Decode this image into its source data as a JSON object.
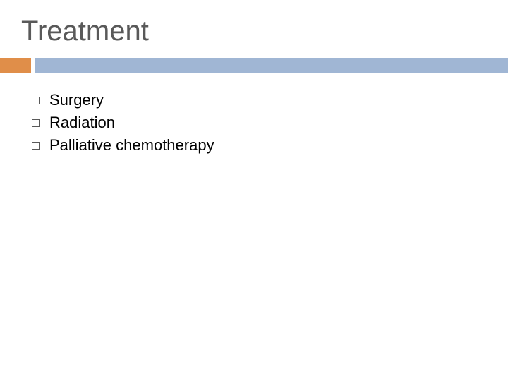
{
  "slide": {
    "title": "Treatment",
    "title_color": "#595959",
    "title_fontsize": 40,
    "separator": {
      "orange_color": "#e08e49",
      "orange_width": 44,
      "gap_width": 6,
      "blue_color": "#a0b6d4",
      "height": 22
    },
    "bullets": [
      {
        "text": "Surgery"
      },
      {
        "text": "Radiation"
      },
      {
        "text": "Palliative chemotherapy"
      }
    ],
    "bullet_fontsize": 22,
    "bullet_marker_color": "#595959",
    "background_color": "#ffffff"
  }
}
